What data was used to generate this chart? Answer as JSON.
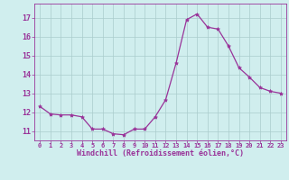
{
  "hours": [
    0,
    1,
    2,
    3,
    4,
    5,
    6,
    7,
    8,
    9,
    10,
    11,
    12,
    13,
    14,
    15,
    16,
    17,
    18,
    19,
    20,
    21,
    22,
    23
  ],
  "values": [
    12.3,
    11.9,
    11.85,
    11.85,
    11.75,
    11.1,
    11.1,
    10.85,
    10.8,
    11.1,
    11.1,
    11.75,
    12.65,
    14.6,
    16.9,
    17.2,
    16.5,
    16.4,
    15.5,
    14.35,
    13.85,
    13.3,
    13.1,
    13.0
  ],
  "line_color": "#993399",
  "marker": "*",
  "marker_size": 3,
  "bg_color": "#d0eeee",
  "grid_color": "#aacccc",
  "xlabel": "Windchill (Refroidissement éolien,°C)",
  "ylim": [
    10.5,
    17.75
  ],
  "xlim": [
    -0.5,
    23.5
  ],
  "yticks": [
    11,
    12,
    13,
    14,
    15,
    16,
    17
  ],
  "xticks": [
    0,
    1,
    2,
    3,
    4,
    5,
    6,
    7,
    8,
    9,
    10,
    11,
    12,
    13,
    14,
    15,
    16,
    17,
    18,
    19,
    20,
    21,
    22,
    23
  ],
  "tick_color": "#993399",
  "label_color": "#993399",
  "font_family": "monospace",
  "tick_fontsize": 5,
  "xlabel_fontsize": 6
}
